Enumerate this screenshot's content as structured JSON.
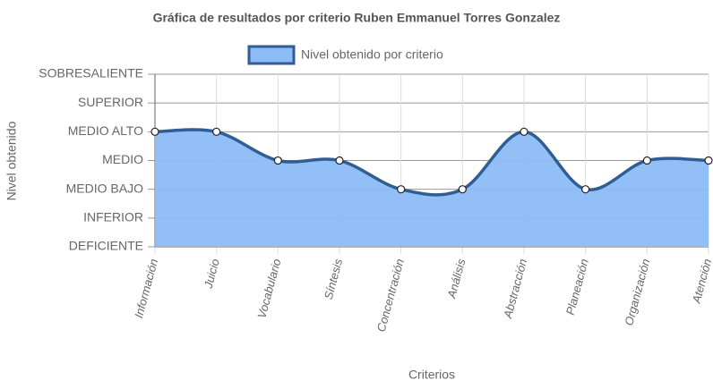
{
  "chart_data": {
    "type": "area",
    "title": "Gráfica de resultados por criterio Ruben Emmanuel Torres Gonzalez",
    "x_label": "Criterios",
    "y_label": "Nivel obtenido",
    "categories": [
      "Información",
      "Juicio",
      "Vocabulario",
      "Síntesis",
      "Concentración",
      "Análisis",
      "Abstracción",
      "Planeación",
      "Organización",
      "Atención"
    ],
    "series": [
      {
        "name": "Nivel obtenido por criterio",
        "color": "#2f5d94",
        "fill": "#8bbcf6",
        "values": [
          4,
          4,
          3,
          3,
          2,
          2,
          4,
          2,
          3,
          3
        ]
      }
    ],
    "ylim": [
      0,
      6
    ],
    "yticks": [
      {
        "value": 0,
        "label": "DEFICIENTE"
      },
      {
        "value": 1,
        "label": "INFERIOR"
      },
      {
        "value": 2,
        "label": "MEDIO BAJO"
      },
      {
        "value": 3,
        "label": "MEDIO"
      },
      {
        "value": 4,
        "label": "MEDIO ALTO"
      },
      {
        "value": 5,
        "label": "SUPERIOR"
      },
      {
        "value": 6,
        "label": "SOBRESALIENTE"
      }
    ],
    "grid": true,
    "legend": "top"
  }
}
